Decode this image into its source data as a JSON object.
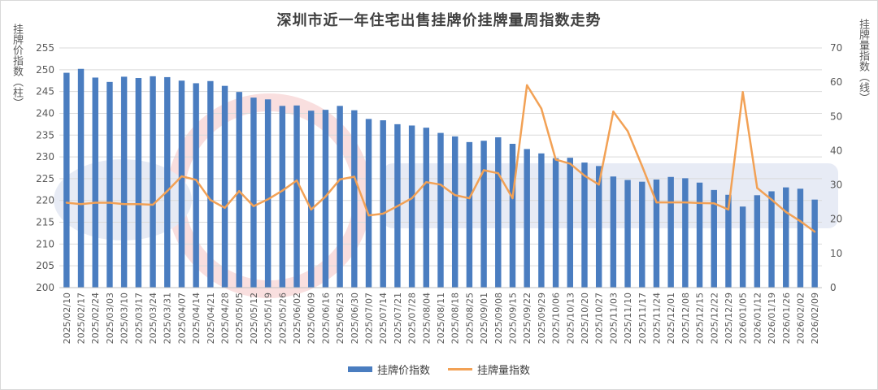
{
  "chart_data": {
    "type": "bar+line",
    "title": "深圳市近一年住宅出售挂牌价挂牌量周指数走势",
    "ylabel_left": "挂牌价指数（柱）",
    "ylabel_right": "挂牌量指数（线）",
    "ylim_left": [
      200,
      255
    ],
    "ylim_right": [
      0,
      70
    ],
    "y_ticks_left": [
      200,
      205,
      210,
      215,
      220,
      225,
      230,
      235,
      240,
      245,
      250,
      255
    ],
    "y_ticks_right": [
      0,
      10,
      20,
      30,
      40,
      50,
      60,
      70
    ],
    "x_labels": [
      "2025/02/10",
      "2025/02/17",
      "2025/02/24",
      "2025/03/03",
      "2025/03/10",
      "2025/03/17",
      "2025/03/24",
      "2025/03/31",
      "2025/04/07",
      "2025/04/14",
      "2025/04/21",
      "2025/04/28",
      "2025/05/05",
      "2025/05/12",
      "2025/05/19",
      "2025/05/26",
      "2025/06/02",
      "2025/06/09",
      "2025/06/16",
      "2025/06/23",
      "2025/06/30",
      "2025/07/07",
      "2025/07/14",
      "2025/07/21",
      "2025/07/28",
      "2025/08/04",
      "2025/08/11",
      "2025/08/18",
      "2025/08/25",
      "2025/09/01",
      "2025/09/08",
      "2025/09/15",
      "2025/09/22",
      "2025/09/29",
      "2025/10/06",
      "2025/10/13",
      "2025/10/20",
      "2025/10/27",
      "2025/11/03",
      "2025/11/10",
      "2025/11/17",
      "2025/11/24",
      "2025/12/01",
      "2025/12/08",
      "2025/12/15",
      "2025/12/22",
      "2025/12/29",
      "2026/01/05",
      "2026/01/12",
      "2026/01/19",
      "2026/01/26",
      "2026/02/02",
      "2026/02/09"
    ],
    "bars": [
      249.3,
      250.2,
      248.2,
      247.2,
      248.4,
      248.1,
      248.5,
      248.3,
      247.5,
      246.9,
      247.4,
      246.3,
      244.9,
      243.6,
      243.2,
      241.7,
      241.8,
      240.6,
      240.8,
      241.7,
      240.7,
      238.7,
      238.4,
      237.5,
      237.2,
      236.7,
      235.5,
      234.7,
      233.4,
      233.7,
      234.5,
      233.0,
      231.8,
      230.8,
      229.7,
      229.8,
      228.7,
      227.9,
      225.5,
      224.7,
      224.3,
      224.8,
      225.4,
      225.1,
      224.1,
      222.4,
      221.3,
      218.6,
      221.2,
      222.1,
      223.0,
      222.7,
      220.2
    ],
    "line": [
      24.8,
      24.4,
      24.8,
      24.8,
      24.4,
      24.4,
      24.2,
      28.2,
      32.5,
      31.5,
      25.6,
      23.3,
      28.2,
      23.8,
      25.8,
      28.3,
      31.3,
      22.8,
      26.6,
      31.6,
      32.4,
      21.1,
      21.6,
      23.8,
      26.1,
      30.8,
      30.1,
      27.0,
      26.1,
      34.3,
      33.4,
      26.1,
      59.1,
      52.3,
      37.4,
      36.2,
      32.7,
      30.1,
      51.4,
      45.7,
      35.5,
      24.9,
      24.9,
      24.9,
      24.7,
      24.6,
      22.8,
      57.1,
      29.1,
      25.7,
      22.1,
      19.4,
      16.3
    ],
    "legend": [
      {
        "label": "挂牌价指数",
        "type": "bar"
      },
      {
        "label": "挂牌量指数",
        "type": "line"
      }
    ],
    "colors": {
      "bar": "#4a7dc0",
      "line": "#f2a155",
      "grid": "#d9d9d9"
    },
    "legend_position": "bottom",
    "grid": true
  }
}
